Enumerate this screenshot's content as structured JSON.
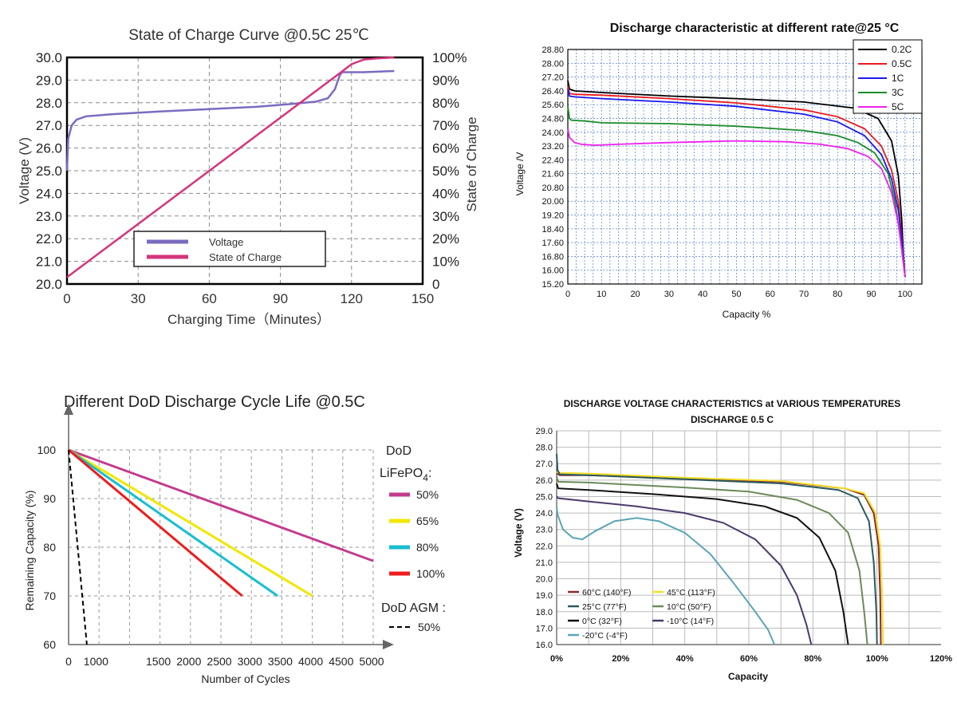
{
  "chart_data": [
    {
      "type": "line",
      "title": "State of Charge Curve @0.5C 25℃",
      "xlabel": "Charging Time（Minutes）",
      "ylabel": "Voltage (V)",
      "y2label": "State of Charge",
      "xlim": [
        0,
        150
      ],
      "ylim": [
        20,
        30
      ],
      "y2lim": [
        0,
        100
      ],
      "grid": true,
      "x_ticks": [
        "0",
        "30",
        "60",
        "90",
        "120",
        "150"
      ],
      "y_ticks": [
        "20.0",
        "21.0",
        "22.0",
        "23.0",
        "24.0",
        "25.0",
        "26.0",
        "27.0",
        "28.0",
        "29.0",
        "30.0"
      ],
      "y2_ticks": [
        "0",
        "10%",
        "20%",
        "30%",
        "40%",
        "50%",
        "60%",
        "70%",
        "80%",
        "90%",
        "100%"
      ],
      "legend": [
        "Voltage",
        "State of Charge"
      ],
      "legend_position": "bottom-left",
      "series": [
        {
          "name": "Voltage",
          "axis": "left",
          "color": "#7b6bbf",
          "x": [
            0,
            0.5,
            2,
            4,
            8,
            20,
            40,
            60,
            80,
            95,
            105,
            110,
            113,
            115,
            116,
            125,
            138
          ],
          "y": [
            25.0,
            26.4,
            27.0,
            27.25,
            27.4,
            27.5,
            27.62,
            27.72,
            27.82,
            27.95,
            28.05,
            28.2,
            28.6,
            29.2,
            29.35,
            29.35,
            29.4
          ]
        },
        {
          "name": "State of Charge",
          "axis": "right",
          "color": "#d4357c",
          "x": [
            0,
            115,
            120,
            125,
            130,
            138
          ],
          "y": [
            3,
            93,
            97,
            99,
            99.5,
            100
          ]
        }
      ]
    },
    {
      "type": "line",
      "title": "Discharge characteristic at different rate@25 °C",
      "xlabel": "Capacity  %",
      "ylabel": "Voltage  /V",
      "xlim": [
        0,
        105
      ],
      "ylim": [
        15.2,
        28.8
      ],
      "grid": true,
      "x_ticks": [
        "0",
        "10",
        "20",
        "30",
        "40",
        "50",
        "60",
        "70",
        "80",
        "90",
        "100"
      ],
      "y_ticks": [
        "15.20",
        "16.00",
        "16.80",
        "17.60",
        "18.40",
        "19.20",
        "20.00",
        "20.80",
        "21.60",
        "22.40",
        "23.20",
        "24.00",
        "24.80",
        "25.60",
        "26.40",
        "27.20",
        "28.00",
        "28.80"
      ],
      "legend": [
        "0.2C",
        "0.5C",
        "1C",
        "3C",
        "5C"
      ],
      "legend_position": "top-right",
      "series": [
        {
          "name": "0.2C",
          "color": "#000000",
          "x": [
            0,
            0.5,
            2,
            10,
            30,
            50,
            70,
            85,
            92,
            96,
            98,
            99,
            99.5,
            100
          ],
          "y": [
            27.0,
            26.5,
            26.4,
            26.3,
            26.1,
            25.95,
            25.75,
            25.4,
            24.8,
            23.5,
            21.5,
            19.0,
            17.0,
            15.6
          ]
        },
        {
          "name": "0.5C",
          "color": "#e8191c",
          "x": [
            0,
            0.5,
            2,
            10,
            30,
            50,
            70,
            80,
            88,
            93,
            96,
            98,
            99,
            100
          ],
          "y": [
            26.7,
            26.25,
            26.2,
            26.15,
            25.95,
            25.7,
            25.3,
            24.9,
            24.2,
            23.2,
            21.8,
            20.0,
            18.0,
            15.6
          ]
        },
        {
          "name": "1C",
          "color": "#1a1aeb",
          "x": [
            0,
            0.5,
            2,
            10,
            30,
            50,
            70,
            80,
            88,
            93,
            96,
            98,
            99,
            100
          ],
          "y": [
            26.5,
            26.1,
            26.05,
            25.95,
            25.75,
            25.5,
            25.05,
            24.6,
            23.8,
            22.7,
            21.3,
            19.5,
            17.8,
            15.6
          ]
        },
        {
          "name": "3C",
          "color": "#1c8c2c",
          "x": [
            0,
            0.5,
            1,
            5,
            10,
            30,
            50,
            70,
            80,
            86,
            91,
            95,
            97,
            98.5,
            100
          ],
          "y": [
            25.5,
            24.8,
            24.7,
            24.65,
            24.55,
            24.5,
            24.35,
            24.1,
            23.8,
            23.4,
            22.8,
            21.6,
            20.0,
            18.0,
            15.6
          ]
        },
        {
          "name": "5C",
          "color": "#ee21ee",
          "x": [
            0,
            0.5,
            2,
            4,
            8,
            15,
            30,
            50,
            65,
            75,
            83,
            89,
            93,
            96,
            98,
            99.5,
            100
          ],
          "y": [
            24.2,
            23.7,
            23.4,
            23.3,
            23.25,
            23.3,
            23.4,
            23.5,
            23.45,
            23.3,
            23.05,
            22.6,
            21.9,
            20.5,
            18.7,
            16.5,
            15.6
          ]
        }
      ]
    },
    {
      "type": "line",
      "title": "Different DoD Discharge Cycle Life @0.5C",
      "xlabel": "Number of Cycles",
      "ylabel": "Remaining Capacity (%)",
      "xlim": [
        0,
        5000
      ],
      "ylim": [
        60,
        100
      ],
      "grid": true,
      "x_ticks": [
        "0",
        "1000",
        "1500",
        "2000",
        "2500",
        "3000",
        "3500",
        "4000",
        "4500",
        "5000"
      ],
      "y_ticks": [
        "60",
        "70",
        "80",
        "90",
        "100"
      ],
      "legend_header": "DoD",
      "legend_subheader": "LiFePO",
      "legend_subheader_sub": "4",
      "legend_subheader_suffix": ":",
      "legend_header2": "DoD AGM :",
      "legend_position": "right",
      "series": [
        {
          "name": "50%",
          "color": "#c33b8e",
          "dash": false,
          "x": [
            0,
            5000
          ],
          "y": [
            100,
            77.2
          ]
        },
        {
          "name": "65%",
          "color": "#f0e700",
          "dash": false,
          "x": [
            0,
            4000
          ],
          "y": [
            100,
            70
          ]
        },
        {
          "name": "80%",
          "color": "#18bfd0",
          "dash": false,
          "x": [
            0,
            3430
          ],
          "y": [
            100,
            70
          ]
        },
        {
          "name": "100%",
          "color": "#ee1c1c",
          "dash": false,
          "x": [
            0,
            2850
          ],
          "y": [
            100,
            70
          ]
        },
        {
          "name": "50%",
          "color": "#000000",
          "dash": true,
          "group": "AGM",
          "x": [
            0,
            300
          ],
          "y": [
            100,
            60
          ]
        }
      ]
    },
    {
      "type": "line",
      "title": "DISCHARGE VOLTAGE CHARACTERISTICS at VARIOUS TEMPERATURES",
      "subtitle": "DISCHARGE 0.5 C",
      "xlabel": "Capacity",
      "ylabel": "Voltage (V)",
      "xlim": [
        0,
        120
      ],
      "ylim": [
        16,
        29
      ],
      "grid": true,
      "x_ticks": [
        "0%",
        "20%",
        "40%",
        "60%",
        "80%",
        "100%",
        "120%"
      ],
      "y_ticks": [
        "16.0",
        "17.0",
        "18.0",
        "19.0",
        "20.0",
        "21.0",
        "22.0",
        "23.0",
        "24.0",
        "25.0",
        "26.0",
        "27.0",
        "28.0",
        "29.0"
      ],
      "legend_position": "bottom-left",
      "series": [
        {
          "name": "60°C  (140°F)",
          "color": "#8b2b2b",
          "x": [
            0,
            1,
            10,
            40,
            70,
            90,
            96,
            99,
            100.5,
            101,
            101.2
          ],
          "y": [
            26.4,
            26.3,
            26.3,
            26.1,
            25.9,
            25.5,
            25.1,
            24.0,
            22.0,
            19.0,
            16.0
          ]
        },
        {
          "name": "45°C  (113°F)",
          "color": "#f2e02a",
          "x": [
            0,
            1,
            10,
            40,
            70,
            90,
            96,
            99.5,
            101,
            101.6,
            101.9
          ],
          "y": [
            26.5,
            26.45,
            26.4,
            26.15,
            25.95,
            25.5,
            25.2,
            24.0,
            22.0,
            19.0,
            16.0
          ]
        },
        {
          "name": "25°C  (77°F)",
          "color": "#2c5a5c",
          "x": [
            0,
            0.3,
            1,
            10,
            40,
            70,
            88,
            94,
            97.5,
            99,
            99.8,
            100
          ],
          "y": [
            27.6,
            26.6,
            26.35,
            26.3,
            26.05,
            25.8,
            25.4,
            24.9,
            23.5,
            21.0,
            18.0,
            16.0
          ]
        },
        {
          "name": "10°C  (50°F)",
          "color": "#6d8a5a",
          "x": [
            0,
            0.5,
            10,
            40,
            60,
            75,
            85,
            91,
            94.5,
            96,
            97
          ],
          "y": [
            26.2,
            25.9,
            25.85,
            25.55,
            25.3,
            24.8,
            24.0,
            22.8,
            20.5,
            18.0,
            16.0
          ]
        },
        {
          "name": "0°C  (32°F)",
          "color": "#111111",
          "x": [
            0,
            0.5,
            10,
            30,
            50,
            65,
            75,
            82,
            87,
            89.5,
            91
          ],
          "y": [
            25.8,
            25.5,
            25.4,
            25.15,
            24.85,
            24.4,
            23.7,
            22.5,
            20.5,
            18.0,
            16.0
          ]
        },
        {
          "name": "-10°C  (14°F)",
          "color": "#4c3a6c",
          "x": [
            0,
            0.5,
            10,
            25,
            40,
            52,
            62,
            70,
            75,
            78,
            79.5
          ],
          "y": [
            25.0,
            24.9,
            24.7,
            24.4,
            24.0,
            23.4,
            22.4,
            20.8,
            19.0,
            17.2,
            16.0
          ]
        },
        {
          "name": "-20°C  (-4°F)",
          "color": "#5aa5b5",
          "x": [
            0,
            0.3,
            2,
            5,
            8,
            12,
            18,
            25,
            32,
            40,
            48,
            55,
            62,
            66,
            68
          ],
          "y": [
            24.4,
            23.9,
            23.0,
            22.5,
            22.4,
            22.9,
            23.5,
            23.7,
            23.5,
            22.8,
            21.5,
            19.8,
            18.0,
            16.9,
            16.0
          ]
        }
      ]
    }
  ]
}
